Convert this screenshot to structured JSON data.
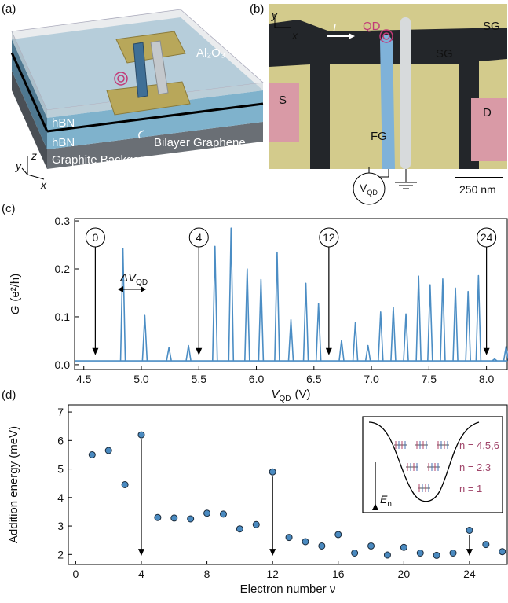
{
  "panel_a": {
    "label": "(a)",
    "al2o3": "Al₂O₃",
    "hbn_top": "hBN",
    "hbn_bottom": "hBN",
    "bilayer": "Bilayer Graphene",
    "graphite": "Graphite Backgate BG",
    "axis_y": "y",
    "axis_z": "z",
    "axis_x": "x"
  },
  "panel_b": {
    "label": "(b)",
    "axis_y": "y",
    "axis_x": "x",
    "current": "I",
    "qd": "QD",
    "sg_top": "SG",
    "sg_mid": "SG",
    "source": "S",
    "drain": "D",
    "fg": "FG",
    "vqd": {
      "symbol": "V",
      "sub": "QD"
    },
    "scale": "250 nm"
  },
  "chart_data": [
    {
      "panel_label": "(c)",
      "type": "line",
      "xlabel": {
        "symbol": "V",
        "sub": "QD",
        "unit": "(V)"
      },
      "ylabel": {
        "symbol": "G",
        "unit": "(e²/h)"
      },
      "x": [
        4.84,
        5.03,
        5.24,
        5.41,
        5.64,
        5.78,
        5.92,
        6.04,
        6.18,
        6.3,
        6.43,
        6.54,
        6.74,
        6.86,
        6.97,
        7.08,
        7.19,
        7.3,
        7.41,
        7.51,
        7.62,
        7.73,
        7.84,
        7.93,
        8.07,
        8.17
      ],
      "values": [
        0.243,
        0.103,
        0.036,
        0.04,
        0.247,
        0.285,
        0.2,
        0.178,
        0.235,
        0.094,
        0.17,
        0.128,
        0.051,
        0.088,
        0.04,
        0.11,
        0.12,
        0.106,
        0.185,
        0.167,
        0.179,
        0.16,
        0.153,
        0.186,
        0.012,
        0.038
      ],
      "baseline": 0.008,
      "color": "#4b8dc4",
      "xlim": [
        4.42,
        8.18
      ],
      "ylim": [
        -0.01,
        0.305
      ],
      "xticks": [
        4.5,
        {
          "value": 5,
          "label": "5.0"
        },
        5.5,
        {
          "value": 6,
          "label": "6.0"
        },
        6.5,
        {
          "value": 7,
          "label": "7.0"
        },
        7.5,
        {
          "value": 8,
          "label": "8.0"
        }
      ],
      "yticks": [
        {
          "value": 0,
          "label": "0.0"
        },
        0.1,
        0.2,
        0.3
      ],
      "annotations": [
        {
          "text": "0",
          "x": 4.6
        },
        {
          "text": "4",
          "x": 5.5
        },
        {
          "text": "12",
          "x": 6.63
        },
        {
          "text": "24",
          "x": 8.0
        }
      ],
      "spacing_label": {
        "symbol": "ΔV",
        "sub": "QD"
      }
    },
    {
      "panel_label": "(d)",
      "type": "scatter",
      "xlabel": "Electron number ν",
      "ylabel": "Addition energy (meV)",
      "x": [
        1,
        2,
        3,
        4,
        5,
        6,
        7,
        8,
        9,
        10,
        11,
        12,
        13,
        14,
        15,
        16,
        17,
        18,
        19,
        20,
        21,
        22,
        23,
        24,
        25,
        26
      ],
      "values": [
        5.5,
        5.65,
        4.45,
        6.2,
        3.3,
        3.28,
        3.25,
        3.45,
        3.42,
        2.9,
        3.05,
        4.9,
        2.6,
        2.45,
        2.3,
        2.7,
        2.05,
        2.3,
        1.98,
        2.25,
        2.05,
        1.97,
        2.05,
        2.85,
        2.35,
        2.1
      ],
      "color": "#4a8ac0",
      "xlim": [
        -0.45,
        26.3
      ],
      "ylim": [
        1.65,
        7.25
      ],
      "xticks": [
        0,
        4,
        8,
        12,
        16,
        20,
        24
      ],
      "yticks": [
        2,
        3,
        4,
        5,
        6,
        7
      ],
      "arrows_at": [
        4,
        12,
        24
      ],
      "inset": {
        "level_labels": [
          "n = 4,5,6",
          "n = 2,3",
          "n = 1"
        ],
        "energy_label": {
          "symbol": "E",
          "sub": "n"
        }
      }
    }
  ]
}
